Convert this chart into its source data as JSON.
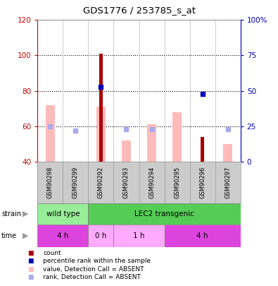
{
  "title": "GDS1776 / 253785_s_at",
  "samples": [
    "GSM90298",
    "GSM90299",
    "GSM90292",
    "GSM90293",
    "GSM90294",
    "GSM90295",
    "GSM90296",
    "GSM90297"
  ],
  "count_values": [
    null,
    null,
    101,
    null,
    null,
    null,
    54,
    null
  ],
  "perc_rank_values": [
    null,
    null,
    53,
    null,
    null,
    null,
    48,
    null
  ],
  "pink_bar_tops": [
    72,
    null,
    71,
    52,
    61,
    68,
    null,
    50
  ],
  "light_blue_yright": [
    25,
    22,
    null,
    23,
    23,
    null,
    null,
    23
  ],
  "left_ylim": [
    40,
    120
  ],
  "right_ylim": [
    0,
    100
  ],
  "left_yticks": [
    40,
    60,
    80,
    100,
    120
  ],
  "right_yticks": [
    0,
    25,
    50,
    75,
    100
  ],
  "right_yticklabels": [
    "0",
    "25",
    "50",
    "75",
    "100%"
  ],
  "left_tick_color": "#cc0000",
  "right_tick_color": "#0000bb",
  "count_color": "#aa0000",
  "perc_rank_color": "#0000bb",
  "pink_bar_color": "#ffbbbb",
  "light_blue_color": "#aaaaee",
  "sample_bg_color": "#cccccc",
  "strain_wt_color": "#99ee99",
  "strain_lec2_color": "#55cc55",
  "time_dark_color": "#dd44dd",
  "time_light_color": "#ffaaff",
  "chart_bg": "#ffffff"
}
